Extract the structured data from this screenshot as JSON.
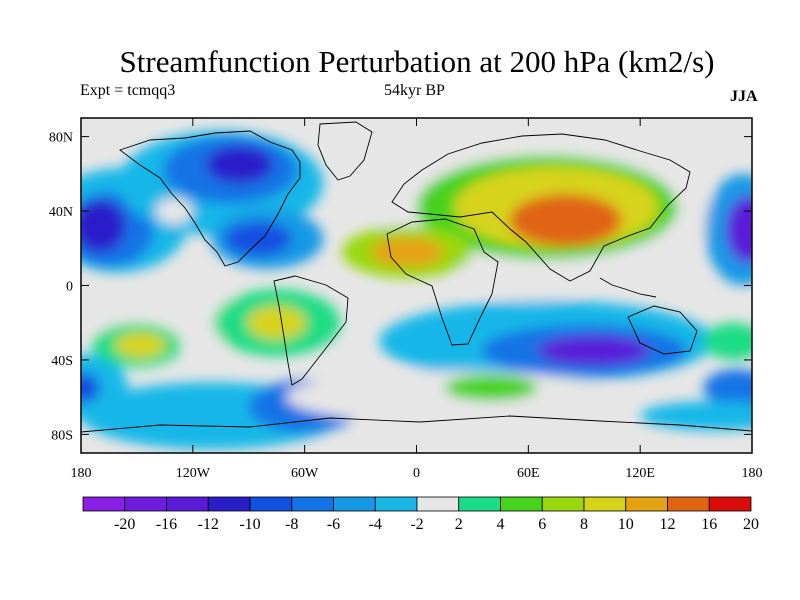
{
  "title": "Streamfunction Perturbation at 200 hPa (km2/s)",
  "experiment": "Expt = tcmqq3",
  "period": "54kyr BP",
  "season": "JJA",
  "map": {
    "x_ticks": [
      "180",
      "120W",
      "60W",
      "0",
      "60E",
      "120E",
      "180"
    ],
    "x_tick_values": [
      -180,
      -120,
      -60,
      0,
      60,
      120,
      180
    ],
    "y_ticks": [
      "80N",
      "40N",
      "0",
      "40S",
      "80S"
    ],
    "y_tick_values": [
      80,
      40,
      0,
      -40,
      -80
    ],
    "lon_range": [
      -180,
      180
    ],
    "lat_range": [
      -90,
      90
    ]
  },
  "colorbar": {
    "labels": [
      "-20",
      "-16",
      "-12",
      "-10",
      "-8",
      "-6",
      "-4",
      "-2",
      "2",
      "4",
      "6",
      "8",
      "10",
      "12",
      "16",
      "20"
    ],
    "colors": [
      "#8a1fe6",
      "#6e1de0",
      "#5a1ad8",
      "#2a1ecb",
      "#1450e0",
      "#1273e6",
      "#1599e6",
      "#18b7e8",
      "#e6e6e6",
      "#1bdc85",
      "#46d21d",
      "#9ad80e",
      "#d7d31a",
      "#e5a312",
      "#e06412",
      "#d90b0b"
    ]
  },
  "field_blobs": [
    {
      "lon": -160,
      "lat": 35,
      "rx": 38,
      "ry": 28,
      "level": -2
    },
    {
      "lon": -165,
      "lat": 30,
      "rx": 24,
      "ry": 20,
      "level": -6
    },
    {
      "lon": -170,
      "lat": 32,
      "rx": 14,
      "ry": 14,
      "level": -10
    },
    {
      "lon": -105,
      "lat": 55,
      "rx": 55,
      "ry": 28,
      "level": -2
    },
    {
      "lon": -100,
      "lat": 62,
      "rx": 36,
      "ry": 18,
      "level": -6
    },
    {
      "lon": -95,
      "lat": 65,
      "rx": 18,
      "ry": 10,
      "level": -10
    },
    {
      "lon": -80,
      "lat": 25,
      "rx": 30,
      "ry": 16,
      "level": -4
    },
    {
      "lon": -85,
      "lat": 25,
      "rx": 18,
      "ry": 9,
      "level": -8
    },
    {
      "lon": -130,
      "lat": 40,
      "rx": 10,
      "ry": 7,
      "level": 4
    },
    {
      "lon": -175,
      "lat": -55,
      "rx": 20,
      "ry": 18,
      "level": -2
    },
    {
      "lon": -178,
      "lat": -55,
      "rx": 8,
      "ry": 8,
      "level": -8
    },
    {
      "lon": -120,
      "lat": -18,
      "rx": 60,
      "ry": 14,
      "level": 4
    },
    {
      "lon": -150,
      "lat": -32,
      "rx": 24,
      "ry": 12,
      "level": 6
    },
    {
      "lon": -148,
      "lat": -32,
      "rx": 14,
      "ry": 7,
      "level": 12
    },
    {
      "lon": -75,
      "lat": -20,
      "rx": 34,
      "ry": 18,
      "level": 6
    },
    {
      "lon": -75,
      "lat": -20,
      "rx": 16,
      "ry": 9,
      "level": 12
    },
    {
      "lon": -110,
      "lat": -70,
      "rx": 70,
      "ry": 18,
      "level": -2
    },
    {
      "lon": -60,
      "lat": -65,
      "rx": 30,
      "ry": 14,
      "level": -6
    },
    {
      "lon": 70,
      "lat": 40,
      "rx": 90,
      "ry": 38,
      "level": 4
    },
    {
      "lon": 70,
      "lat": 42,
      "rx": 70,
      "ry": 28,
      "level": 8
    },
    {
      "lon": 75,
      "lat": 42,
      "rx": 55,
      "ry": 22,
      "level": 12
    },
    {
      "lon": 80,
      "lat": 35,
      "rx": 30,
      "ry": 14,
      "level": 20
    },
    {
      "lon": -5,
      "lat": 18,
      "rx": 35,
      "ry": 14,
      "level": 10
    },
    {
      "lon": -5,
      "lat": 18,
      "rx": 20,
      "ry": 8,
      "level": 16
    },
    {
      "lon": 60,
      "lat": 0,
      "rx": 30,
      "ry": 8,
      "level": 4
    },
    {
      "lon": 70,
      "lat": -30,
      "rx": 90,
      "ry": 22,
      "level": -2
    },
    {
      "lon": 90,
      "lat": -35,
      "rx": 55,
      "ry": 14,
      "level": -6
    },
    {
      "lon": 95,
      "lat": -35,
      "rx": 30,
      "ry": 8,
      "level": -12
    },
    {
      "lon": 20,
      "lat": -60,
      "rx": 90,
      "ry": 14,
      "level": 4
    },
    {
      "lon": 40,
      "lat": -55,
      "rx": 25,
      "ry": 7,
      "level": 8
    },
    {
      "lon": 175,
      "lat": 30,
      "rx": 20,
      "ry": 30,
      "level": -4
    },
    {
      "lon": 178,
      "lat": 30,
      "rx": 12,
      "ry": 18,
      "level": -12
    },
    {
      "lon": 170,
      "lat": -30,
      "rx": 16,
      "ry": 10,
      "level": 6
    },
    {
      "lon": 172,
      "lat": -55,
      "rx": 18,
      "ry": 10,
      "level": -6
    },
    {
      "lon": 160,
      "lat": -70,
      "rx": 40,
      "ry": 8,
      "level": -2
    }
  ]
}
